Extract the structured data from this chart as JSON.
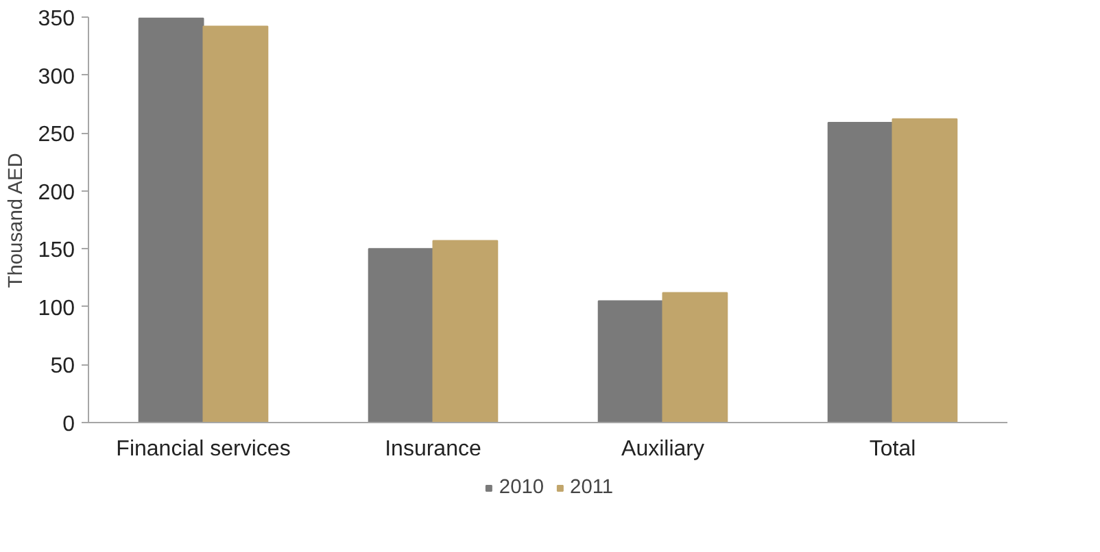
{
  "chart_data": {
    "type": "bar",
    "ylabel": "Thousand AED",
    "categories": [
      "Financial services",
      "Insurance",
      "Auxiliary",
      "Total"
    ],
    "series": [
      {
        "name": "2010",
        "color": "#7a7a7a",
        "values": [
          349,
          150,
          105,
          259
        ]
      },
      {
        "name": "2011",
        "color": "#c1a56b",
        "values": [
          342,
          157,
          112,
          262
        ]
      }
    ],
    "ylim": [
      0,
      350
    ],
    "yticks": [
      0,
      50,
      100,
      150,
      200,
      250,
      300,
      350
    ],
    "grid": false,
    "legend": "bottom"
  }
}
